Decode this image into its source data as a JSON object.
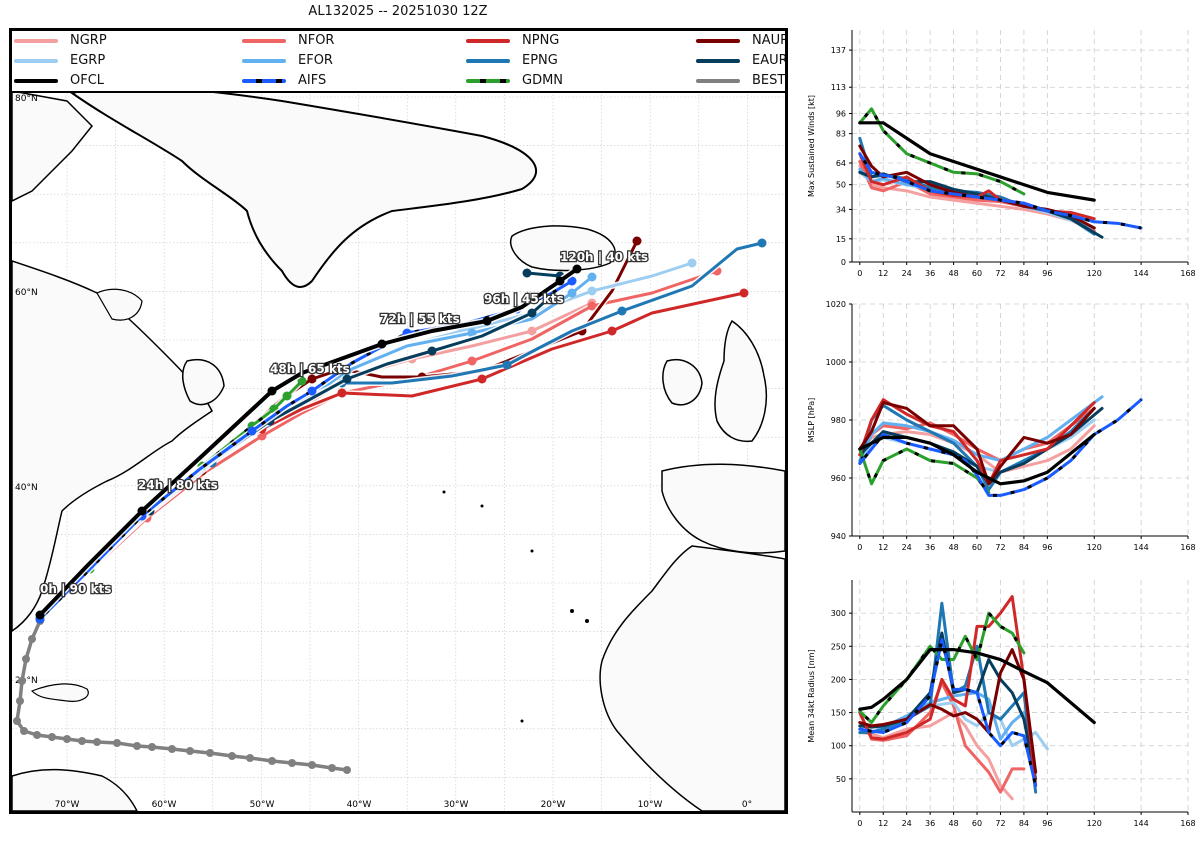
{
  "title": "AL132025 -- 20251030 12Z",
  "legend": [
    {
      "name": "NGRP",
      "color": "#f4a0a0",
      "style": "solid"
    },
    {
      "name": "NFOR",
      "color": "#f06464",
      "style": "solid"
    },
    {
      "name": "NPNG",
      "color": "#d02828",
      "style": "solid"
    },
    {
      "name": "NAUR",
      "color": "#7a0000",
      "style": "solid"
    },
    {
      "name": "EGRP",
      "color": "#9ecdf2",
      "style": "solid"
    },
    {
      "name": "EFOR",
      "color": "#62b0f0",
      "style": "solid"
    },
    {
      "name": "EPNG",
      "color": "#1f77b4",
      "style": "solid"
    },
    {
      "name": "EAUR",
      "color": "#073d5c",
      "style": "solid"
    },
    {
      "name": "OFCL",
      "color": "#000000",
      "style": "solid"
    },
    {
      "name": "AIFS",
      "color": "#1a5cff",
      "style": "dashed"
    },
    {
      "name": "GDMN",
      "color": "#2ca02c",
      "style": "dashed"
    },
    {
      "name": "BEST",
      "color": "#808080",
      "style": "solid"
    }
  ],
  "map": {
    "lat_labels": [
      "80°N",
      "60°N",
      "40°N",
      "20°N"
    ],
    "lon_labels": [
      "70°W",
      "60°W",
      "50°W",
      "40°W",
      "30°W",
      "20°W",
      "10°W",
      "0°"
    ],
    "forecast_labels": [
      "0h | 90 kts",
      "24h | 80 kts",
      "48h | 65 kts",
      "72h | 55 kts",
      "96h | 45 kts",
      "120h | 40 kts"
    ]
  },
  "chart_data": [
    {
      "type": "line",
      "title": "",
      "xlabel": "",
      "ylabel": "Max Sustained Winds [kt]",
      "xticks": [
        0,
        12,
        24,
        36,
        48,
        60,
        72,
        84,
        96,
        120,
        144,
        168
      ],
      "yticks": [
        0,
        15,
        34,
        50,
        64,
        83,
        96,
        113,
        137
      ],
      "xlim": [
        -4,
        168
      ],
      "ylim": [
        0,
        150
      ],
      "series": [
        {
          "name": "OFCL",
          "x": [
            0,
            12,
            24,
            36,
            48,
            72,
            96,
            120
          ],
          "values": [
            90,
            90,
            80,
            70,
            65,
            55,
            45,
            40
          ]
        },
        {
          "name": "GDMN",
          "x": [
            0,
            6,
            12,
            24,
            36,
            48,
            60,
            72,
            84
          ],
          "values": [
            90,
            99,
            85,
            70,
            64,
            58,
            57,
            52,
            44
          ]
        },
        {
          "name": "NAUR",
          "x": [
            0,
            6,
            12,
            24,
            36,
            48,
            60,
            72,
            84,
            96,
            108,
            120
          ],
          "values": [
            75,
            62,
            55,
            58,
            50,
            45,
            42,
            40,
            36,
            34,
            30,
            22
          ]
        },
        {
          "name": "NPNG",
          "x": [
            0,
            6,
            12,
            24,
            36,
            48,
            60,
            66,
            72,
            84,
            96,
            108,
            120
          ],
          "values": [
            70,
            52,
            50,
            55,
            46,
            43,
            42,
            46,
            40,
            38,
            33,
            32,
            28
          ]
        },
        {
          "name": "NFOR",
          "x": [
            0,
            6,
            12,
            24,
            36,
            48,
            60,
            72,
            84,
            96,
            108,
            120
          ],
          "values": [
            65,
            48,
            46,
            52,
            44,
            42,
            40,
            39,
            36,
            32,
            28,
            20
          ]
        },
        {
          "name": "NGRP",
          "x": [
            0,
            6,
            12,
            24,
            36,
            48,
            60,
            72,
            84,
            96,
            108,
            120
          ],
          "values": [
            62,
            50,
            48,
            46,
            42,
            40,
            38,
            36,
            34,
            31,
            27,
            20
          ]
        },
        {
          "name": "EPNG",
          "x": [
            0,
            6,
            12,
            24,
            36,
            48,
            60,
            72,
            84,
            96,
            108,
            120
          ],
          "values": [
            80,
            55,
            56,
            54,
            48,
            46,
            45,
            42,
            36,
            33,
            28,
            18
          ]
        },
        {
          "name": "EAUR",
          "x": [
            0,
            6,
            12,
            24,
            36,
            48,
            60,
            72,
            84,
            96,
            108,
            124
          ],
          "values": [
            58,
            55,
            57,
            52,
            52,
            47,
            44,
            40,
            37,
            33,
            28,
            16
          ]
        },
        {
          "name": "EFOR",
          "x": [
            0,
            6,
            12,
            24,
            36,
            48,
            60,
            72,
            84,
            96,
            108,
            120
          ],
          "values": [
            60,
            52,
            54,
            50,
            48,
            46,
            44,
            41,
            37,
            33,
            28,
            22
          ]
        },
        {
          "name": "EGRP",
          "x": [
            0,
            6,
            12,
            24,
            36,
            48,
            60,
            72,
            84,
            96,
            108,
            120
          ],
          "values": [
            58,
            52,
            53,
            50,
            47,
            45,
            43,
            40,
            36,
            32,
            27,
            22
          ]
        },
        {
          "name": "AIFS",
          "x": [
            0,
            6,
            12,
            18,
            24,
            36,
            48,
            60,
            72,
            84,
            96,
            108,
            120,
            132,
            144
          ],
          "values": [
            70,
            58,
            56,
            55,
            52,
            46,
            44,
            42,
            40,
            38,
            33,
            30,
            26,
            25,
            22
          ]
        }
      ]
    },
    {
      "type": "line",
      "title": "",
      "xlabel": "",
      "ylabel": "MSLP [hPa]",
      "xticks": [
        0,
        12,
        24,
        36,
        48,
        60,
        72,
        84,
        96,
        120,
        144,
        168
      ],
      "yticks": [
        940,
        960,
        980,
        1000,
        1020
      ],
      "xlim": [
        -4,
        168
      ],
      "ylim": [
        940,
        1020
      ],
      "series": [
        {
          "name": "OFCL",
          "x": [
            0,
            12,
            24,
            36,
            48,
            60,
            72,
            84,
            96,
            120
          ],
          "values": [
            970,
            974,
            974,
            972,
            968,
            962,
            958,
            959,
            962,
            975
          ]
        },
        {
          "name": "GDMN",
          "x": [
            0,
            6,
            12,
            24,
            36,
            48,
            60,
            66
          ],
          "values": [
            970,
            958,
            966,
            970,
            966,
            965,
            960,
            955
          ]
        },
        {
          "name": "NAUR",
          "x": [
            0,
            6,
            12,
            24,
            36,
            48,
            60,
            66,
            72,
            84,
            96,
            108,
            120
          ],
          "values": [
            970,
            976,
            986,
            984,
            978,
            978,
            970,
            958,
            964,
            974,
            972,
            975,
            984
          ]
        },
        {
          "name": "NPNG",
          "x": [
            0,
            6,
            12,
            24,
            36,
            48,
            60,
            66,
            72,
            84,
            96,
            108,
            120
          ],
          "values": [
            968,
            980,
            987,
            982,
            978,
            976,
            966,
            958,
            966,
            968,
            970,
            978,
            986
          ]
        },
        {
          "name": "NFOR",
          "x": [
            0,
            6,
            12,
            24,
            36,
            48,
            60,
            72,
            84,
            96,
            108,
            120
          ],
          "values": [
            966,
            975,
            978,
            977,
            979,
            975,
            970,
            966,
            970,
            972,
            978,
            984
          ]
        },
        {
          "name": "NGRP",
          "x": [
            0,
            6,
            12,
            24,
            36,
            48,
            60,
            72,
            84,
            96,
            108,
            120
          ],
          "values": [
            968,
            974,
            975,
            976,
            975,
            972,
            968,
            962,
            964,
            966,
            970,
            978
          ]
        },
        {
          "name": "EPNG",
          "x": [
            0,
            6,
            12,
            24,
            36,
            48,
            60,
            66,
            72,
            84,
            96,
            108,
            120
          ],
          "values": [
            965,
            980,
            985,
            980,
            976,
            972,
            964,
            956,
            962,
            966,
            970,
            976,
            984
          ]
        },
        {
          "name": "EAUR",
          "x": [
            0,
            6,
            12,
            24,
            36,
            48,
            60,
            66,
            72,
            84,
            96,
            108,
            124
          ],
          "values": [
            968,
            972,
            976,
            974,
            972,
            969,
            964,
            958,
            962,
            965,
            970,
            975,
            984
          ]
        },
        {
          "name": "EFOR",
          "x": [
            0,
            6,
            12,
            24,
            36,
            48,
            60,
            72,
            84,
            96,
            108,
            124
          ],
          "values": [
            966,
            975,
            979,
            978,
            976,
            973,
            968,
            966,
            970,
            974,
            980,
            988
          ]
        },
        {
          "name": "EGRP",
          "x": [
            0,
            6,
            12,
            24,
            36,
            48,
            60,
            72,
            84,
            96,
            108,
            120
          ],
          "values": [
            966,
            972,
            974,
            972,
            970,
            968,
            964,
            962,
            966,
            970,
            974,
            980
          ]
        },
        {
          "name": "AIFS",
          "x": [
            0,
            6,
            12,
            24,
            36,
            48,
            54,
            60,
            66,
            72,
            84,
            96,
            108,
            120,
            132,
            144
          ],
          "values": [
            965,
            970,
            975,
            972,
            970,
            968,
            966,
            961,
            954,
            954,
            956,
            960,
            966,
            975,
            980,
            987
          ]
        }
      ]
    },
    {
      "type": "line",
      "title": "",
      "xlabel": "",
      "ylabel": "Mean 34kt Radius [nm]",
      "xticks": [
        0,
        12,
        24,
        36,
        48,
        60,
        72,
        84,
        96,
        120,
        144,
        168
      ],
      "yticks": [
        50,
        100,
        150,
        200,
        250,
        300
      ],
      "xlim": [
        -4,
        168
      ],
      "ylim": [
        0,
        350
      ],
      "series": [
        {
          "name": "OFCL",
          "x": [
            0,
            6,
            12,
            24,
            36,
            48,
            60,
            72,
            84,
            96,
            108,
            120
          ],
          "values": [
            155,
            158,
            170,
            200,
            245,
            245,
            240,
            230,
            212,
            195,
            165,
            135
          ]
        },
        {
          "name": "GDMN",
          "x": [
            0,
            6,
            12,
            24,
            36,
            42,
            48,
            54,
            60,
            66,
            72,
            78,
            84
          ],
          "values": [
            152,
            135,
            160,
            200,
            250,
            230,
            230,
            265,
            230,
            300,
            280,
            270,
            240
          ]
        },
        {
          "name": "NAUR",
          "x": [
            0,
            6,
            12,
            24,
            36,
            42,
            48,
            54,
            60,
            66,
            72,
            78,
            84,
            90
          ],
          "values": [
            135,
            130,
            132,
            140,
            162,
            155,
            145,
            150,
            140,
            120,
            210,
            245,
            200,
            60
          ]
        },
        {
          "name": "NPNG",
          "x": [
            0,
            6,
            12,
            24,
            36,
            42,
            48,
            54,
            60,
            66,
            72,
            78,
            84,
            90
          ],
          "values": [
            150,
            112,
            110,
            120,
            140,
            200,
            170,
            160,
            280,
            280,
            300,
            325,
            200,
            40
          ]
        },
        {
          "name": "NFOR",
          "x": [
            0,
            6,
            12,
            24,
            36,
            42,
            48,
            54,
            60,
            66,
            72,
            78,
            84
          ],
          "values": [
            150,
            110,
            108,
            115,
            150,
            195,
            160,
            100,
            80,
            60,
            30,
            65,
            65
          ]
        },
        {
          "name": "NGRP",
          "x": [
            0,
            6,
            12,
            24,
            36,
            48,
            54,
            60,
            66,
            72,
            78
          ],
          "values": [
            120,
            118,
            112,
            125,
            130,
            150,
            130,
            100,
            80,
            40,
            20
          ]
        },
        {
          "name": "EPNG",
          "x": [
            0,
            6,
            12,
            24,
            36,
            42,
            48,
            54,
            60,
            66,
            72,
            78,
            84,
            90
          ],
          "values": [
            120,
            120,
            125,
            140,
            160,
            315,
            180,
            190,
            250,
            150,
            140,
            160,
            180,
            30
          ]
        },
        {
          "name": "EAUR",
          "x": [
            0,
            6,
            12,
            24,
            36,
            42,
            48,
            54,
            60,
            66,
            72,
            78,
            84,
            90
          ],
          "values": [
            130,
            128,
            130,
            140,
            180,
            270,
            180,
            185,
            180,
            230,
            200,
            180,
            140,
            50
          ]
        },
        {
          "name": "EFOR",
          "x": [
            0,
            6,
            12,
            24,
            36,
            48,
            60,
            66,
            72,
            78,
            84,
            90
          ],
          "values": [
            125,
            120,
            128,
            145,
            165,
            175,
            180,
            170,
            110,
            135,
            150,
            60
          ]
        },
        {
          "name": "EGRP",
          "x": [
            0,
            6,
            12,
            24,
            36,
            48,
            54,
            60,
            66,
            72,
            78,
            84,
            90,
            96
          ],
          "values": [
            125,
            120,
            125,
            140,
            160,
            165,
            140,
            130,
            150,
            140,
            100,
            110,
            120,
            95
          ]
        },
        {
          "name": "AIFS",
          "x": [
            0,
            6,
            12,
            24,
            36,
            42,
            48,
            54,
            60,
            66,
            72,
            78,
            84,
            90
          ],
          "values": [
            125,
            122,
            120,
            135,
            175,
            260,
            185,
            185,
            180,
            120,
            100,
            120,
            115,
            40
          ]
        }
      ]
    }
  ]
}
